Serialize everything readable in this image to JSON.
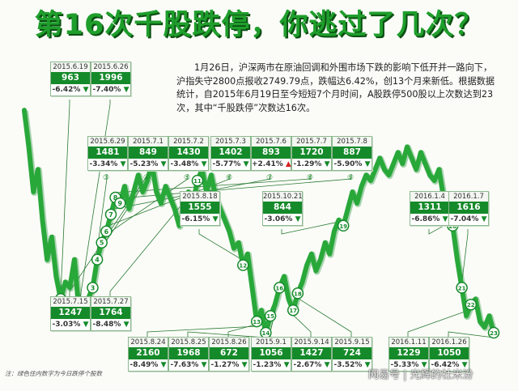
{
  "header": {
    "headline": "第16次千股跌停，你逃过了几次？",
    "intro": "1月26日，沪深两市在原油回调和外围市场下跌的影响下低开并一路向下，沪指失守2800点报收2749.79点，跌幅达6.42%，创13个月来新低。根据数据统计，自2015年6月19日至今短短7个月时间，A股跌停500股以上次数达到23次，其中“千股跌停”次数达16次。",
    "footnote": "注：绿色住内数字为今日跌停个股数",
    "watermark": "网易号 | 光辉的社米汾"
  },
  "colors": {
    "line": "#29a83a",
    "line_dark": "#158a2a",
    "marker_fill": "#ffffff",
    "marker_stroke": "#158a2a",
    "down_arrow": "#158a2a",
    "up_arrow": "#d42121",
    "title": "#1f9e2c"
  },
  "chart_data": {
    "type": "line",
    "title": "",
    "xlabel": "",
    "ylabel": "",
    "axes_visible": false,
    "grid": false,
    "legend": "none",
    "series": [
      {
        "values": [
          81,
          68,
          52,
          60,
          42,
          28,
          36,
          22,
          14,
          20,
          18,
          28,
          10,
          4,
          14,
          18,
          28,
          34,
          38,
          44,
          50,
          48,
          54,
          46,
          52,
          58,
          52,
          56,
          62,
          52,
          48,
          54,
          50,
          46,
          40,
          46,
          52,
          48,
          56,
          60,
          52,
          58,
          50,
          46,
          42,
          38,
          32,
          34,
          26,
          30,
          18,
          6,
          10,
          2,
          8,
          12,
          18,
          22,
          14,
          10,
          16,
          20,
          26,
          30,
          24,
          28,
          34,
          30,
          38,
          42,
          40,
          46,
          52,
          48,
          54,
          58,
          56,
          60,
          64,
          60,
          58,
          62,
          66,
          62,
          68,
          64,
          60,
          66,
          62,
          58,
          56,
          60,
          50,
          44,
          40,
          28,
          18,
          8,
          12,
          14,
          6,
          4,
          8,
          2
        ]
      }
    ],
    "events": [
      {
        "num": "1",
        "date": "2015.6.19",
        "count": "963",
        "change": "-6.42%",
        "dir": "down",
        "i": 8
      },
      {
        "num": "2",
        "date": "2015.6.26",
        "count": "1996",
        "change": "-7.40%",
        "dir": "down",
        "i": 12
      },
      {
        "num": "3",
        "date": "2015.6.29",
        "count": "1481",
        "change": "-3.34%",
        "dir": "down",
        "i": 15
      },
      {
        "num": "4",
        "date": "2015.7.1",
        "count": "849",
        "change": "-5.23%",
        "dir": "down",
        "i": 16
      },
      {
        "num": "5",
        "date": "2015.7.2",
        "count": "1430",
        "change": "-3.48%",
        "dir": "down",
        "i": 17
      },
      {
        "num": "6",
        "date": "2015.7.3",
        "count": "1402",
        "change": "-5.77%",
        "dir": "down",
        "i": 18
      },
      {
        "num": "7",
        "date": "2015.7.6",
        "count": "893",
        "change": "+2.41%",
        "dir": "up",
        "i": 19
      },
      {
        "num": "8",
        "date": "2015.7.7",
        "count": "1720",
        "change": "-1.29%",
        "dir": "down",
        "i": 20
      },
      {
        "num": "9",
        "date": "2015.7.8",
        "count": "887",
        "change": "-5.90%",
        "dir": "down",
        "i": 21
      },
      {
        "num": "10",
        "date": "2015.7.15",
        "count": "1247",
        "change": "-3.03%",
        "dir": "down",
        "i": 28
      },
      {
        "num": "11",
        "date": "2015.7.27",
        "count": "1764",
        "change": "-8.48%",
        "dir": "down",
        "i": 38
      },
      {
        "num": "12",
        "date": "2015.8.18",
        "count": "1555",
        "change": "-6.15%",
        "dir": "down",
        "i": 48
      },
      {
        "num": "13",
        "date": "2015.8.24",
        "count": "2160",
        "change": "-8.49%",
        "dir": "down",
        "i": 51
      },
      {
        "num": "14",
        "date": "2015.8.25",
        "count": "1968",
        "change": "-7.63%",
        "dir": "down",
        "i": 53
      },
      {
        "num": "15",
        "date": "2015.8.26",
        "count": "672",
        "change": "-1.27%",
        "dir": "down",
        "i": 54
      },
      {
        "num": "16",
        "date": "2015.9.1",
        "count": "1056",
        "change": "-1.23%",
        "dir": "down",
        "i": 56
      },
      {
        "num": "17",
        "date": "2015.9.14",
        "count": "1427",
        "change": "-2.67%",
        "dir": "down",
        "i": 59
      },
      {
        "num": "18",
        "date": "2015.9.15",
        "count": "724",
        "change": "-3.52%",
        "dir": "down",
        "i": 60
      },
      {
        "num": "19",
        "date": "2015.10.21",
        "count": "844",
        "change": "-3.06%",
        "dir": "down",
        "i": 70
      },
      {
        "num": "20",
        "date": "2016.1.4",
        "count": "1311",
        "change": "-6.86%",
        "dir": "down",
        "i": 94
      },
      {
        "num": "21",
        "date": "2016.1.7",
        "count": "1616",
        "change": "-7.04%",
        "dir": "down",
        "i": 96
      },
      {
        "num": "22",
        "date": "2016.1.11",
        "count": "1229",
        "change": "-5.33%",
        "dir": "down",
        "i": 98
      },
      {
        "num": "23",
        "date": "2016.1.26",
        "count": "1050",
        "change": "-6.42%",
        "dir": "down",
        "i": 103
      }
    ]
  }
}
